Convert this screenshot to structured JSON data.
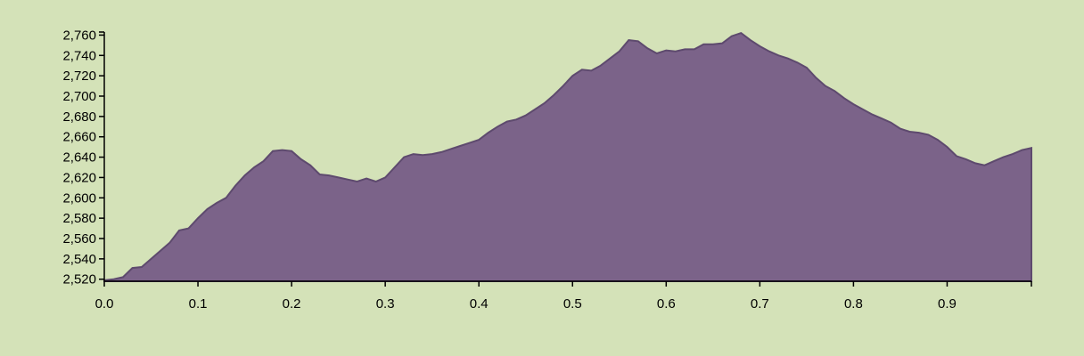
{
  "chart_data": {
    "type": "area",
    "color": "#7b6389",
    "line_color": "#5e4a6e",
    "xlim": [
      0,
      0.99
    ],
    "ylim": [
      2518,
      2763
    ],
    "xticks": [
      {
        "value": 0,
        "label": "0.0"
      },
      0.1,
      0.2,
      0.3,
      0.4,
      0.5,
      0.6,
      0.7,
      0.8,
      0.9
    ],
    "yticks": [
      {
        "value": 2520,
        "label": "2,520"
      },
      {
        "value": 2540,
        "label": "2,540"
      },
      {
        "value": 2560,
        "label": "2,560"
      },
      {
        "value": 2580,
        "label": "2,580"
      },
      {
        "value": 2600,
        "label": "2,600"
      },
      {
        "value": 2620,
        "label": "2,620"
      },
      {
        "value": 2640,
        "label": "2,640"
      },
      {
        "value": 2660,
        "label": "2,660"
      },
      {
        "value": 2680,
        "label": "2,680"
      },
      {
        "value": 2700,
        "label": "2,700"
      },
      {
        "value": 2720,
        "label": "2,720"
      },
      {
        "value": 2740,
        "label": "2,740"
      },
      {
        "value": 2760,
        "label": "2,760"
      }
    ],
    "x": [
      0,
      0.01,
      0.02,
      0.03,
      0.04,
      0.05,
      0.06,
      0.07,
      0.08,
      0.09,
      0.1,
      0.11,
      0.12,
      0.13,
      0.14,
      0.15,
      0.16,
      0.17,
      0.18,
      0.19,
      0.2,
      0.21,
      0.22,
      0.23,
      0.24,
      0.25,
      0.26,
      0.27,
      0.28,
      0.29,
      0.3,
      0.31,
      0.32,
      0.33,
      0.34,
      0.35,
      0.36,
      0.37,
      0.38,
      0.39,
      0.4,
      0.41,
      0.42,
      0.43,
      0.44,
      0.45,
      0.46,
      0.47,
      0.48,
      0.49,
      0.5,
      0.51,
      0.52,
      0.53,
      0.54,
      0.55,
      0.56,
      0.57,
      0.58,
      0.59,
      0.6,
      0.61,
      0.62,
      0.63,
      0.64,
      0.65,
      0.66,
      0.67,
      0.68,
      0.69,
      0.7,
      0.71,
      0.72,
      0.73,
      0.74,
      0.75,
      0.76,
      0.77,
      0.78,
      0.79,
      0.8,
      0.81,
      0.82,
      0.83,
      0.84,
      0.85,
      0.86,
      0.87,
      0.88,
      0.89,
      0.9,
      0.91,
      0.92,
      0.93,
      0.94,
      0.95,
      0.96,
      0.97,
      0.98,
      0.99
    ],
    "values": [
      2519,
      2520,
      2522,
      2531,
      2532,
      2540,
      2548,
      2556,
      2568,
      2570,
      2580,
      2589,
      2595,
      2600,
      2612,
      2622,
      2630,
      2636,
      2646,
      2647,
      2646,
      2638,
      2632,
      2623,
      2622,
      2620,
      2618,
      2616,
      2619,
      2616,
      2620,
      2630,
      2640,
      2643,
      2642,
      2643,
      2645,
      2648,
      2651,
      2654,
      2657,
      2664,
      2670,
      2675,
      2677,
      2681,
      2687,
      2693,
      2701,
      2710,
      2720,
      2726,
      2725,
      2730,
      2737,
      2744,
      2755,
      2754,
      2747,
      2742,
      2745,
      2744,
      2746,
      2746,
      2751,
      2751,
      2752,
      2759,
      2762,
      2755,
      2749,
      2744,
      2740,
      2737,
      2733,
      2728,
      2718,
      2710,
      2705,
      2698,
      2692,
      2687,
      2682,
      2678,
      2674,
      2668,
      2665,
      2664,
      2662,
      2657,
      2650,
      2641,
      2638,
      2634,
      2632,
      2636,
      2640,
      2643,
      2647,
      2649
    ]
  }
}
